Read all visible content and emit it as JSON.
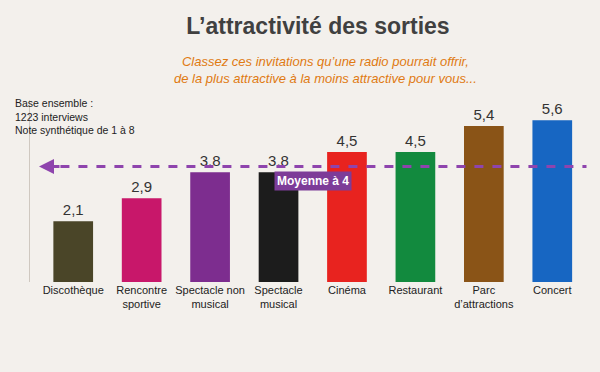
{
  "chart_data": {
    "type": "bar",
    "title": "L’attractivité des sorties",
    "subtitle": [
      "Classez ces invitations qu’une radio pourrait offrir,",
      "de la plus attractive à la moins attractive pour vous..."
    ],
    "note": [
      "Base ensemble :",
      "1223 interviews",
      "Note synthétique de 1 à 8"
    ],
    "categories": [
      "Discothèque",
      "Rencontre sportive",
      "Spectacle non musical",
      "Spectacle musical",
      "Cinéma",
      "Restaurant",
      "Parc d’attractions",
      "Concert"
    ],
    "values": [
      2.1,
      2.9,
      3.8,
      3.8,
      4.5,
      4.5,
      5.4,
      5.6
    ],
    "value_labels": [
      "2,1",
      "2,9",
      "3,8",
      "3,8",
      "4,5",
      "4,5",
      "5,4",
      "5,6"
    ],
    "colors": [
      "#4a4528",
      "#c8176a",
      "#7d2d8f",
      "#1c1c1c",
      "#e8231f",
      "#128a3e",
      "#8a5417",
      "#1766c2"
    ],
    "ylim": [
      0,
      6.3
    ],
    "yticks": [],
    "tick_labels": "x",
    "data_labels": true,
    "grid": false,
    "annotations": [
      {
        "text": "Moyenne à 4",
        "y": 4,
        "line_style": "dashed"
      }
    ]
  }
}
